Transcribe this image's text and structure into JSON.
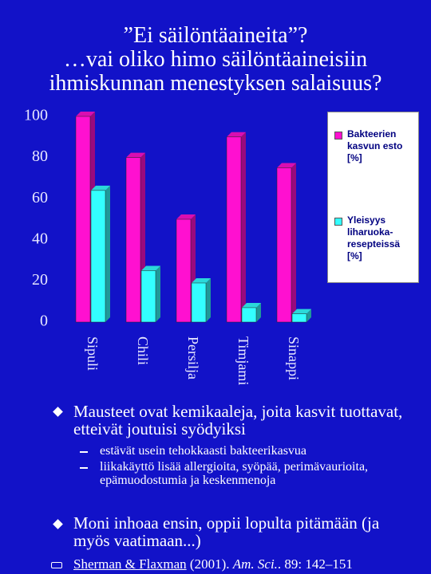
{
  "title": [
    "”Ei säilöntäaineita”?",
    "…vai oliko himo säilöntäaineisiin",
    "ihmiskunnan menestyksen salaisuus?"
  ],
  "chart_data": {
    "type": "bar3d",
    "categories": [
      "Sipuli",
      "Chili",
      "Persilja",
      "Timjami",
      "Sinappi"
    ],
    "series": [
      {
        "name": "Bakteerien kasvun esto [%]",
        "color": "#ff10d0",
        "values": [
          100,
          80,
          50,
          90,
          75
        ]
      },
      {
        "name": "Yleisyys liharuoka-resepteissä [%]",
        "color": "#33ffff",
        "values": [
          64,
          25,
          19,
          7,
          4
        ]
      }
    ],
    "ylim": [
      0,
      100
    ],
    "yticks": [
      0,
      20,
      40,
      60,
      80,
      100
    ],
    "legend": "right"
  },
  "bullets": [
    {
      "text": "Mausteet ovat kemikaaleja, joita kasvit tuottavat, etteivät joutuisi syödyiksi",
      "sub": [
        "estävät usein tehokkaasti bakteerikasvua",
        "liikakäyttö lisää allergioita, syöpää, perimävaurioita, epämuodostumia ja keskenmenoja"
      ]
    },
    {
      "text": "Moni inhoaa ensin, oppii lopulta pitämään (ja myös vaatimaan...)"
    }
  ],
  "reference": {
    "authors": "Sherman & Flaxman",
    "year": "(2001).",
    "journal": "Am. Sci.",
    "details": ". 89: 142–151"
  }
}
